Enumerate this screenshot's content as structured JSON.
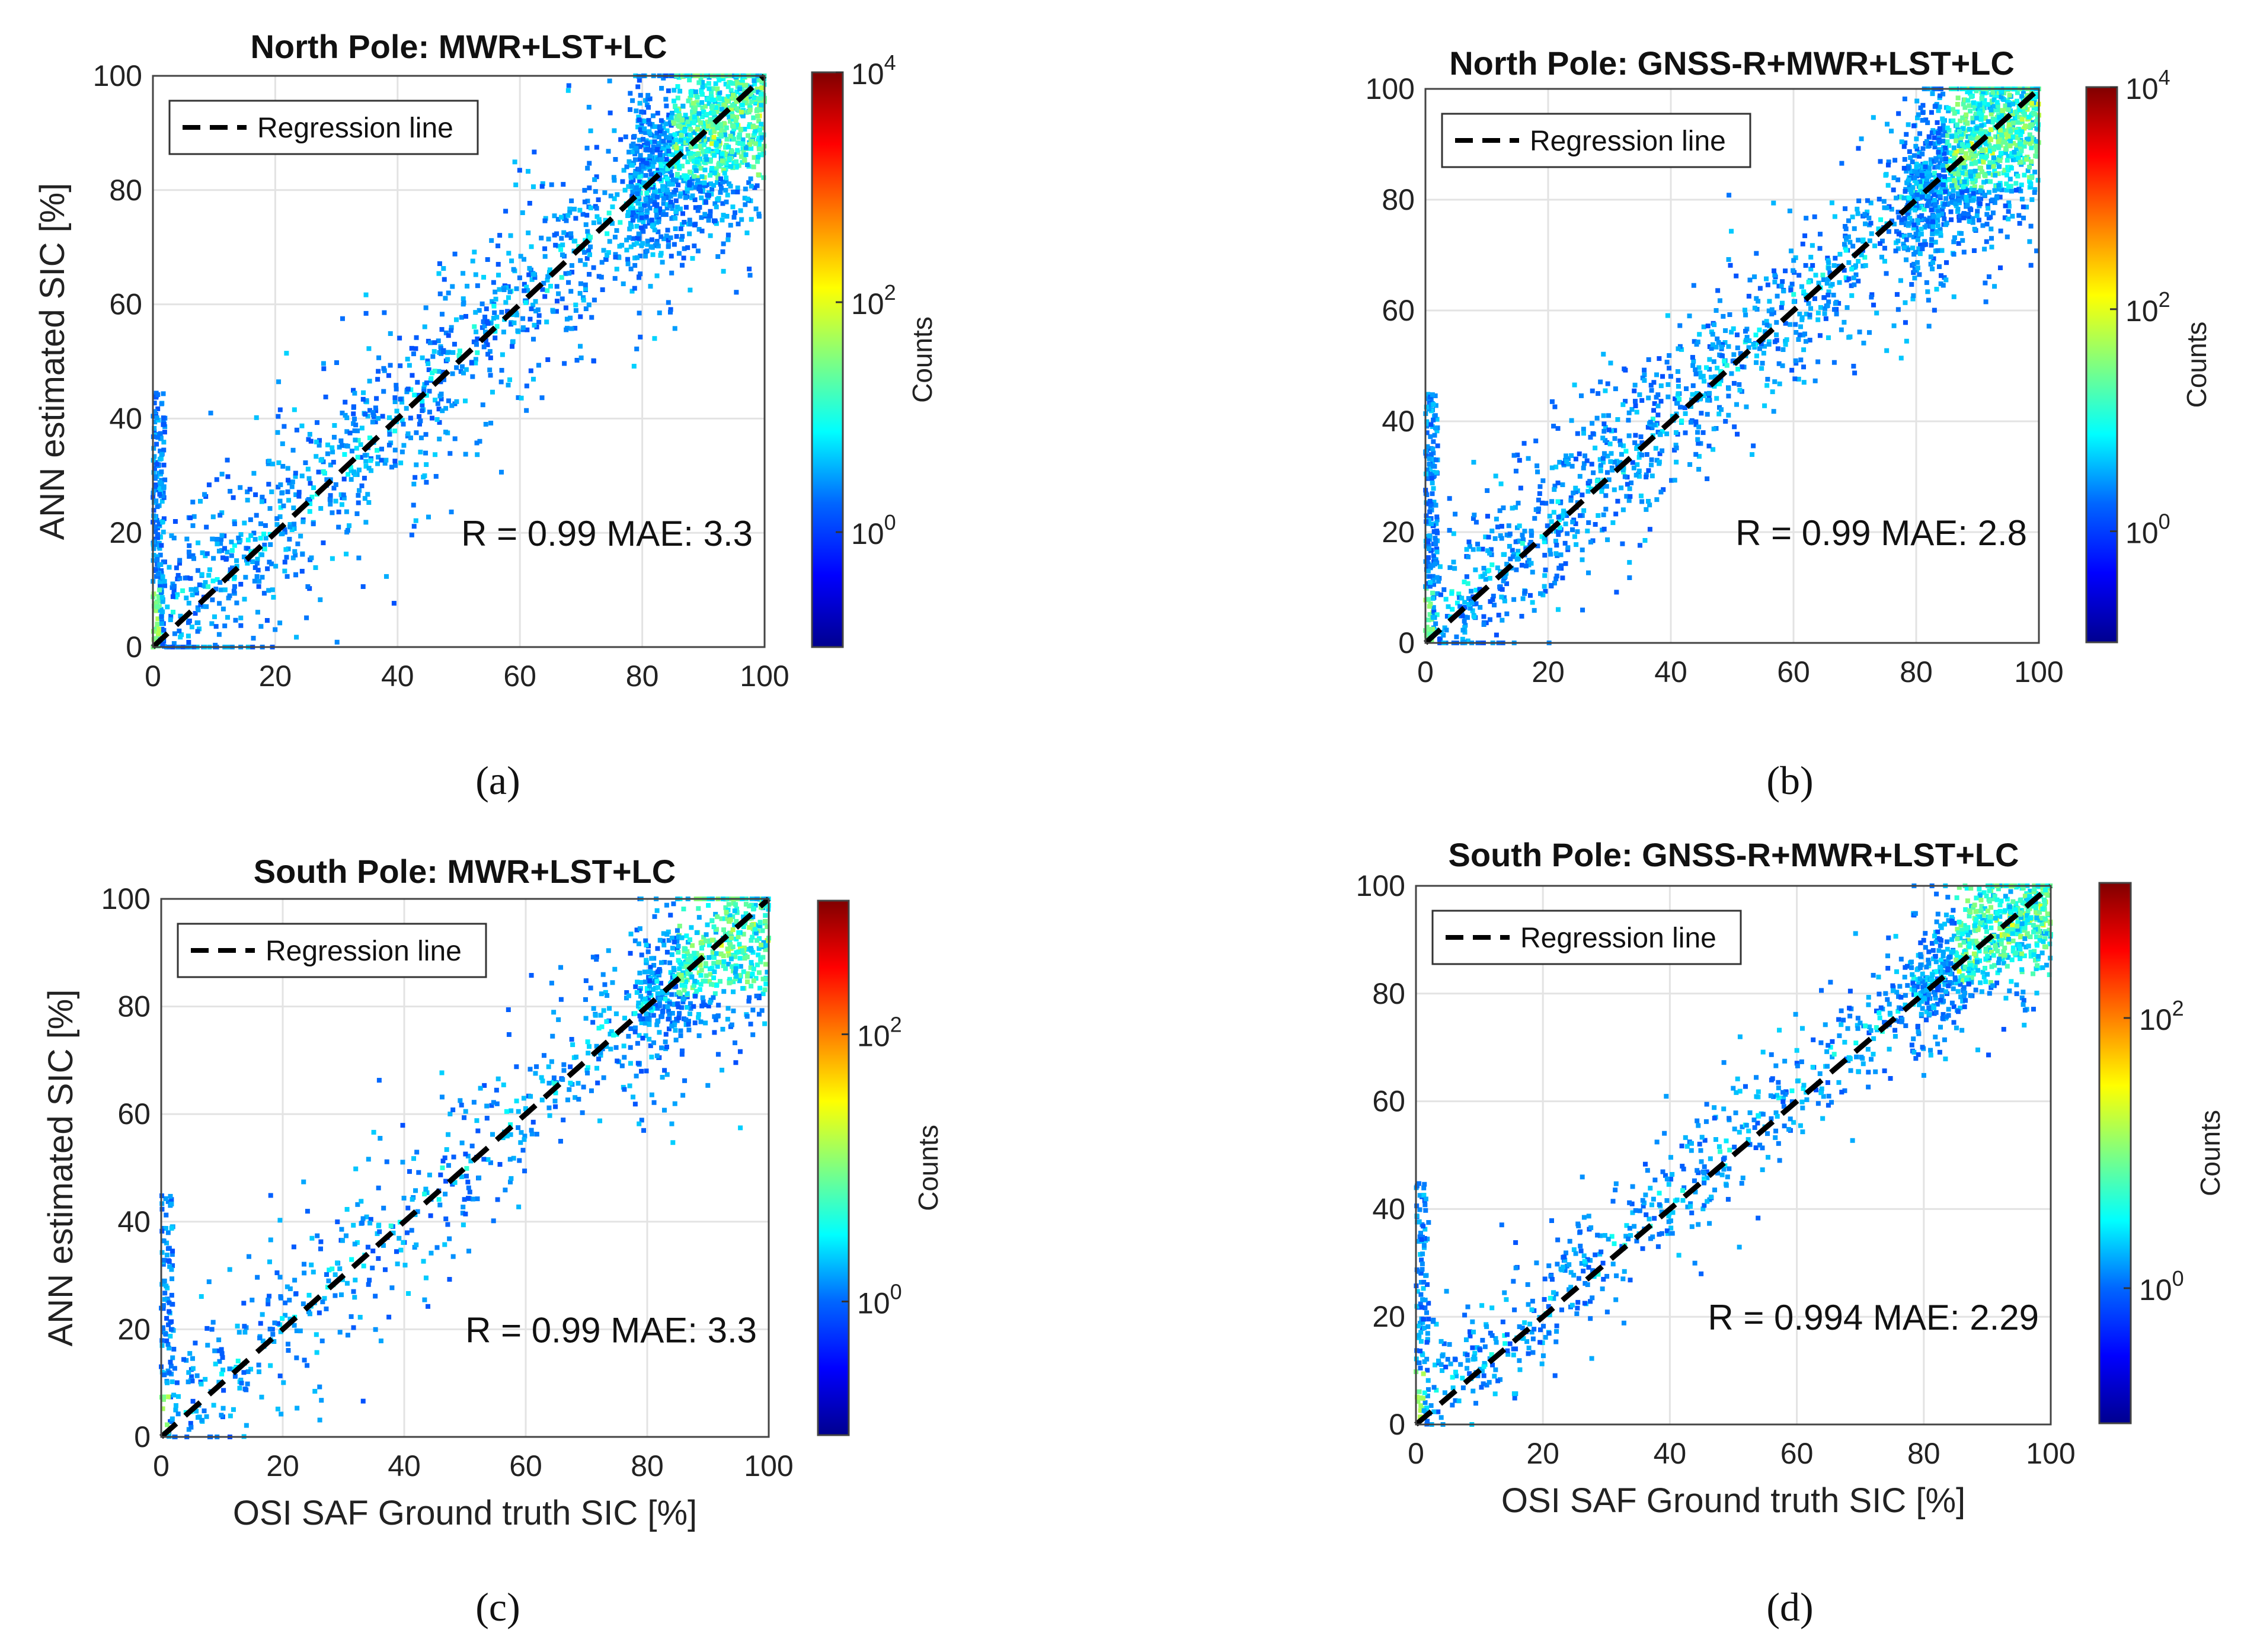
{
  "figure": {
    "panel_labels": [
      "(a)",
      "(b)",
      "(c)",
      "(d)"
    ]
  },
  "colors": {
    "regression_line": "#000000",
    "grid": "#e3e3e3",
    "axis": "#444444",
    "colormap": [
      "#00008f",
      "#0000ff",
      "#0080ff",
      "#00ffff",
      "#80ff80",
      "#ffff00",
      "#ff8000",
      "#ff0000",
      "#800000"
    ]
  },
  "chart_data": [
    {
      "type": "scatter",
      "plot_style": "2D histogram density scatter",
      "title": "North Pole: MWR+LST+LC",
      "xlabel": "",
      "ylabel": "ANN estimated SIC [%]",
      "xlim": [
        0,
        100
      ],
      "ylim": [
        0,
        100
      ],
      "xticks": [
        0,
        20,
        40,
        60,
        80,
        100
      ],
      "yticks": [
        0,
        20,
        40,
        60,
        80,
        100
      ],
      "grid": true,
      "legend": {
        "label": "Regression line",
        "location": "top-left"
      },
      "regression_line": {
        "x": [
          0,
          100
        ],
        "y": [
          0,
          100
        ]
      },
      "annotation": "R = 0.99 MAE: 3.3",
      "colorbar": {
        "label": "Counts",
        "scale": "log",
        "tick_bases": [
          "10",
          "10",
          "10"
        ],
        "tick_exponents": [
          "0",
          "2",
          "4"
        ],
        "log_range": [
          -1,
          4
        ]
      },
      "density_ridge": {
        "x": [
          0,
          10,
          20,
          30,
          40,
          50,
          60,
          70,
          80,
          90,
          100
        ],
        "y": [
          3,
          12,
          21,
          30,
          40,
          51,
          61,
          70,
          80,
          89,
          96
        ]
      },
      "spread": 9,
      "point_count": 2600
    },
    {
      "type": "scatter",
      "plot_style": "2D histogram density scatter",
      "title": "North Pole: GNSS-R+MWR+LST+LC",
      "xlabel": "",
      "ylabel": "",
      "xlim": [
        0,
        100
      ],
      "ylim": [
        0,
        100
      ],
      "xticks": [
        0,
        20,
        40,
        60,
        80,
        100
      ],
      "yticks": [
        0,
        20,
        40,
        60,
        80,
        100
      ],
      "grid": true,
      "legend": {
        "label": "Regression line",
        "location": "top-left"
      },
      "regression_line": {
        "x": [
          0,
          100
        ],
        "y": [
          0,
          100
        ]
      },
      "annotation": "R = 0.99 MAE: 2.8",
      "colorbar": {
        "label": "Counts",
        "scale": "log",
        "tick_bases": [
          "10",
          "10",
          "10"
        ],
        "tick_exponents": [
          "0",
          "2",
          "4"
        ],
        "log_range": [
          -1,
          4
        ]
      },
      "density_ridge": {
        "x": [
          0,
          10,
          20,
          30,
          40,
          50,
          60,
          70,
          80,
          90,
          100
        ],
        "y": [
          3,
          12,
          21,
          31,
          41,
          51,
          61,
          70,
          80,
          89,
          96
        ]
      },
      "spread": 8,
      "point_count": 2600
    },
    {
      "type": "scatter",
      "plot_style": "2D histogram density scatter",
      "title": "South Pole: MWR+LST+LC",
      "xlabel": "OSI SAF Ground truth SIC [%]",
      "ylabel": "ANN estimated SIC [%]",
      "xlim": [
        0,
        100
      ],
      "ylim": [
        0,
        100
      ],
      "xticks": [
        0,
        20,
        40,
        60,
        80,
        100
      ],
      "yticks": [
        0,
        20,
        40,
        60,
        80,
        100
      ],
      "grid": true,
      "legend": {
        "label": "Regression line",
        "location": "top-left"
      },
      "regression_line": {
        "x": [
          0,
          100
        ],
        "y": [
          0,
          100
        ]
      },
      "annotation": "R = 0.99 MAE: 3.3",
      "colorbar": {
        "label": "Counts",
        "scale": "log",
        "tick_bases": [
          "10",
          "10"
        ],
        "tick_exponents": [
          "0",
          "2"
        ],
        "log_range": [
          -1,
          3
        ]
      },
      "density_ridge": {
        "x": [
          0,
          10,
          20,
          30,
          40,
          50,
          60,
          70,
          80,
          90,
          100
        ],
        "y": [
          3,
          12,
          21,
          31,
          41,
          51,
          61,
          71,
          81,
          90,
          95
        ]
      },
      "spread": 8,
      "point_count": 1300
    },
    {
      "type": "scatter",
      "plot_style": "2D histogram density scatter",
      "title": "South Pole: GNSS-R+MWR+LST+LC",
      "xlabel": "OSI SAF Ground truth SIC [%]",
      "ylabel": "",
      "xlim": [
        0,
        100
      ],
      "ylim": [
        0,
        100
      ],
      "xticks": [
        0,
        20,
        40,
        60,
        80,
        100
      ],
      "yticks": [
        0,
        20,
        40,
        60,
        80,
        100
      ],
      "grid": true,
      "legend": {
        "label": "Regression line",
        "location": "top-left"
      },
      "regression_line": {
        "x": [
          0,
          100
        ],
        "y": [
          0,
          100
        ]
      },
      "annotation": "R = 0.994 MAE: 2.29",
      "colorbar": {
        "label": "Counts",
        "scale": "log",
        "tick_bases": [
          "10",
          "10"
        ],
        "tick_exponents": [
          "0",
          "2"
        ],
        "log_range": [
          -1,
          3
        ]
      },
      "density_ridge": {
        "x": [
          0,
          10,
          20,
          30,
          40,
          50,
          60,
          70,
          80,
          90,
          100
        ],
        "y": [
          3,
          12,
          22,
          32,
          42,
          52,
          62,
          72,
          82,
          90,
          95
        ]
      },
      "spread": 6,
      "point_count": 1500
    }
  ]
}
